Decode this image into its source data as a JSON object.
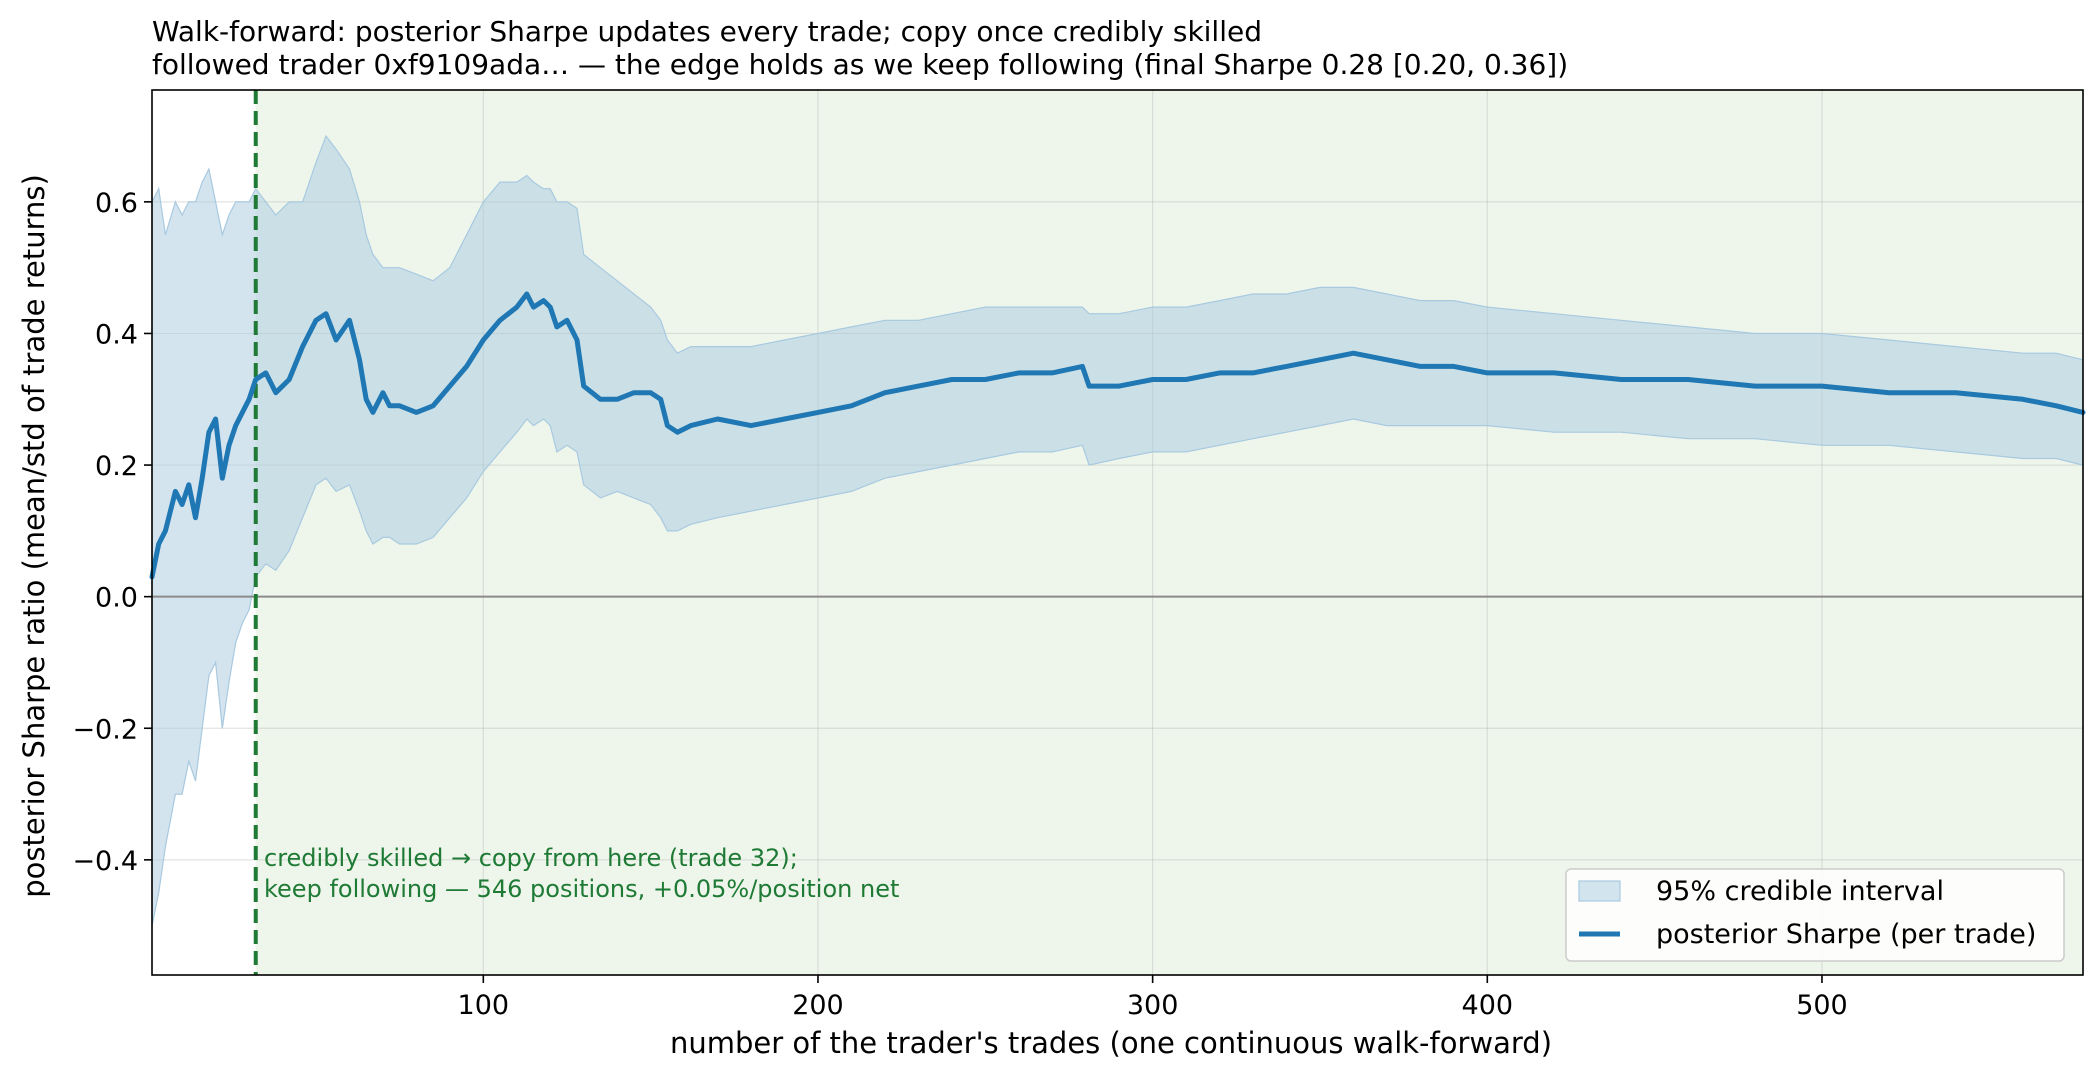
{
  "chart_data": {
    "type": "line",
    "title_line1": "Walk-forward: posterior Sharpe updates every trade; copy once credibly skilled",
    "title_line2": "followed trader 0xf9109ada… — the edge holds as we keep following (final Sharpe 0.28 [0.20, 0.36])",
    "xlabel": "number of the trader's trades (one continuous walk-forward)",
    "ylabel": "posterior Sharpe ratio (mean/std of trade returns)",
    "xlim": [
      1,
      578
    ],
    "ylim": [
      -0.575,
      0.77
    ],
    "x_ticks": [
      100,
      200,
      300,
      400,
      500
    ],
    "x_tick_labels": [
      "100",
      "200",
      "300",
      "400",
      "500"
    ],
    "y_ticks": [
      -0.4,
      -0.2,
      0.0,
      0.2,
      0.4,
      0.6
    ],
    "y_tick_labels": [
      "−0.4",
      "−0.2",
      "0.0",
      "0.2",
      "0.4",
      "0.6"
    ],
    "grid": true,
    "reference_line_y": 0.0,
    "copy_start_trade": 32,
    "annotation_line1": "credibly skilled → copy from here (trade 32);",
    "annotation_line2": "keep following — 546 positions, +0.05%/position net",
    "legend_position": "lower-right",
    "legend": {
      "band_label": "95% credible interval",
      "line_label": "posterior Sharpe (per trade)"
    },
    "colors": {
      "sharpe_line": "#1f77b4",
      "band": "#a8c9e0",
      "copy_region": "#eef6ec",
      "copy_line": "#1e7a34",
      "zero_line": "#8a8a8a",
      "annotation": "#1e7a34"
    },
    "series": [
      {
        "name": "posterior Sharpe (per trade)",
        "x": [
          1,
          3,
          5,
          8,
          10,
          12,
          14,
          16,
          18,
          20,
          22,
          24,
          26,
          28,
          30,
          32,
          35,
          38,
          42,
          46,
          50,
          53,
          56,
          60,
          63,
          65,
          67,
          70,
          72,
          75,
          80,
          85,
          90,
          95,
          100,
          105,
          110,
          113,
          115,
          118,
          120,
          122,
          125,
          128,
          130,
          135,
          140,
          145,
          150,
          153,
          155,
          158,
          162,
          170,
          180,
          190,
          200,
          210,
          220,
          230,
          240,
          250,
          260,
          270,
          279,
          281,
          290,
          300,
          310,
          320,
          330,
          340,
          350,
          360,
          370,
          380,
          390,
          400,
          420,
          440,
          460,
          480,
          500,
          520,
          540,
          560,
          570,
          578
        ],
        "y": [
          0.03,
          0.08,
          0.1,
          0.16,
          0.14,
          0.17,
          0.12,
          0.18,
          0.25,
          0.27,
          0.18,
          0.23,
          0.26,
          0.28,
          0.3,
          0.33,
          0.34,
          0.31,
          0.33,
          0.38,
          0.42,
          0.43,
          0.39,
          0.42,
          0.36,
          0.3,
          0.28,
          0.31,
          0.29,
          0.29,
          0.28,
          0.29,
          0.32,
          0.35,
          0.39,
          0.42,
          0.44,
          0.46,
          0.44,
          0.45,
          0.44,
          0.41,
          0.42,
          0.39,
          0.32,
          0.3,
          0.3,
          0.31,
          0.31,
          0.3,
          0.26,
          0.25,
          0.26,
          0.27,
          0.26,
          0.27,
          0.28,
          0.29,
          0.31,
          0.32,
          0.33,
          0.33,
          0.34,
          0.34,
          0.35,
          0.32,
          0.32,
          0.33,
          0.33,
          0.34,
          0.34,
          0.35,
          0.36,
          0.37,
          0.36,
          0.35,
          0.35,
          0.34,
          0.34,
          0.33,
          0.33,
          0.32,
          0.32,
          0.31,
          0.31,
          0.3,
          0.29,
          0.28
        ]
      },
      {
        "name": "95% credible interval",
        "x": [
          1,
          3,
          5,
          8,
          10,
          12,
          14,
          16,
          18,
          20,
          22,
          24,
          26,
          28,
          30,
          32,
          35,
          38,
          42,
          46,
          50,
          53,
          56,
          60,
          63,
          65,
          67,
          70,
          72,
          75,
          80,
          85,
          90,
          95,
          100,
          105,
          110,
          113,
          115,
          118,
          120,
          122,
          125,
          128,
          130,
          135,
          140,
          145,
          150,
          153,
          155,
          158,
          162,
          170,
          180,
          190,
          200,
          210,
          220,
          230,
          240,
          250,
          260,
          270,
          279,
          281,
          290,
          300,
          310,
          320,
          330,
          340,
          350,
          360,
          370,
          380,
          390,
          400,
          420,
          440,
          460,
          480,
          500,
          520,
          540,
          560,
          570,
          578
        ],
        "upper": [
          0.6,
          0.62,
          0.55,
          0.6,
          0.58,
          0.6,
          0.6,
          0.63,
          0.65,
          0.6,
          0.55,
          0.58,
          0.6,
          0.6,
          0.6,
          0.62,
          0.6,
          0.58,
          0.6,
          0.6,
          0.66,
          0.7,
          0.68,
          0.65,
          0.6,
          0.55,
          0.52,
          0.5,
          0.5,
          0.5,
          0.49,
          0.48,
          0.5,
          0.55,
          0.6,
          0.63,
          0.63,
          0.64,
          0.63,
          0.62,
          0.62,
          0.6,
          0.6,
          0.59,
          0.52,
          0.5,
          0.48,
          0.46,
          0.44,
          0.42,
          0.39,
          0.37,
          0.38,
          0.38,
          0.38,
          0.39,
          0.4,
          0.41,
          0.42,
          0.42,
          0.43,
          0.44,
          0.44,
          0.44,
          0.44,
          0.43,
          0.43,
          0.44,
          0.44,
          0.45,
          0.46,
          0.46,
          0.47,
          0.47,
          0.46,
          0.45,
          0.45,
          0.44,
          0.43,
          0.42,
          0.41,
          0.4,
          0.4,
          0.39,
          0.38,
          0.37,
          0.37,
          0.36
        ],
        "lower": [
          -0.5,
          -0.45,
          -0.38,
          -0.3,
          -0.3,
          -0.25,
          -0.28,
          -0.2,
          -0.12,
          -0.1,
          -0.2,
          -0.13,
          -0.07,
          -0.04,
          -0.02,
          0.03,
          0.05,
          0.04,
          0.07,
          0.12,
          0.17,
          0.18,
          0.16,
          0.17,
          0.13,
          0.1,
          0.08,
          0.09,
          0.09,
          0.08,
          0.08,
          0.09,
          0.12,
          0.15,
          0.19,
          0.22,
          0.25,
          0.27,
          0.26,
          0.27,
          0.26,
          0.22,
          0.23,
          0.22,
          0.17,
          0.15,
          0.16,
          0.15,
          0.14,
          0.12,
          0.1,
          0.1,
          0.11,
          0.12,
          0.13,
          0.14,
          0.15,
          0.16,
          0.18,
          0.19,
          0.2,
          0.21,
          0.22,
          0.22,
          0.23,
          0.2,
          0.21,
          0.22,
          0.22,
          0.23,
          0.24,
          0.25,
          0.26,
          0.27,
          0.26,
          0.26,
          0.26,
          0.26,
          0.25,
          0.25,
          0.24,
          0.24,
          0.23,
          0.23,
          0.22,
          0.21,
          0.21,
          0.2
        ]
      }
    ]
  }
}
